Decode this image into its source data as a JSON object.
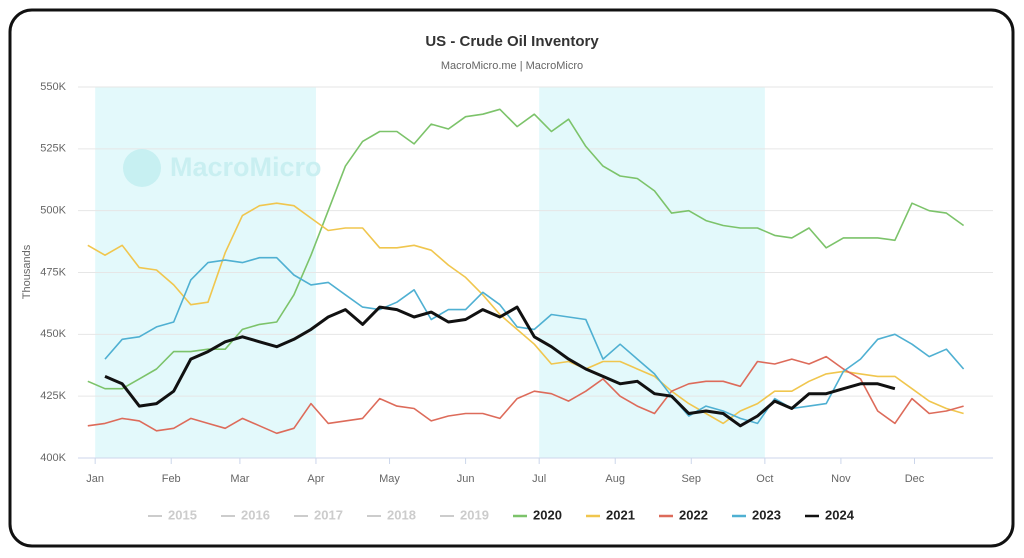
{
  "chart_data": {
    "type": "line",
    "title": "US - Crude Oil Inventory",
    "subtitle": "MacroMicro.me | MacroMicro",
    "watermark": "MacroMicro",
    "y_label": "Thousands",
    "x": [
      -3,
      4,
      11,
      18,
      25,
      32,
      39,
      46,
      53,
      60,
      67,
      74,
      81,
      88,
      95,
      102,
      109,
      116,
      123,
      130,
      137,
      144,
      151,
      158,
      165,
      172,
      179,
      186,
      193,
      200,
      207,
      214,
      221,
      228,
      235,
      242,
      249,
      256,
      263,
      270,
      277,
      284,
      291,
      298,
      305,
      312,
      319,
      326,
      333,
      340,
      347,
      354
    ],
    "xlim": [
      -7,
      366
    ],
    "xticks": [
      {
        "value": 0,
        "label": "Jan"
      },
      {
        "value": 31,
        "label": "Feb"
      },
      {
        "value": 59,
        "label": "Mar"
      },
      {
        "value": 90,
        "label": "Apr"
      },
      {
        "value": 120,
        "label": "May"
      },
      {
        "value": 151,
        "label": "Jun"
      },
      {
        "value": 181,
        "label": "Jul"
      },
      {
        "value": 212,
        "label": "Aug"
      },
      {
        "value": 243,
        "label": "Sep"
      },
      {
        "value": 273,
        "label": "Oct"
      },
      {
        "value": 304,
        "label": "Nov"
      },
      {
        "value": 334,
        "label": "Dec"
      }
    ],
    "shaded_ranges": [
      [
        0,
        90
      ],
      [
        181,
        273
      ]
    ],
    "shade_color": "#e3f9fb",
    "ylim": [
      400,
      550
    ],
    "yticks": [
      {
        "value": 400,
        "label": "400K"
      },
      {
        "value": 425,
        "label": "425K"
      },
      {
        "value": 450,
        "label": "450K"
      },
      {
        "value": 475,
        "label": "475K"
      },
      {
        "value": 500,
        "label": "500K"
      },
      {
        "value": 525,
        "label": "525K"
      },
      {
        "value": 550,
        "label": "550K"
      }
    ],
    "grid": true,
    "hidden_series": [
      "2015",
      "2016",
      "2017",
      "2018",
      "2019"
    ],
    "series": [
      {
        "name": "2020",
        "color": "#7cc36a",
        "values": [
          431,
          428,
          428,
          432,
          436,
          443,
          443,
          444,
          444,
          452,
          454,
          455,
          466,
          482,
          500,
          518,
          528,
          532,
          532,
          527,
          535,
          533,
          538,
          539,
          541,
          534,
          539,
          532,
          537,
          526,
          518,
          514,
          513,
          508,
          499,
          500,
          496,
          494,
          493,
          493,
          490,
          489,
          493,
          485,
          489,
          489,
          489,
          488,
          503,
          500,
          499,
          494
        ]
      },
      {
        "name": "2021",
        "color": "#f0c64e",
        "values": [
          486,
          482,
          486,
          477,
          476,
          470,
          462,
          463,
          483,
          498,
          502,
          503,
          502,
          497,
          492,
          493,
          493,
          485,
          485,
          486,
          484,
          478,
          473,
          466,
          458,
          452,
          446,
          438,
          439,
          436,
          439,
          439,
          436,
          433,
          427,
          422,
          418,
          414,
          419,
          422,
          427,
          427,
          431,
          434,
          435,
          434,
          433,
          433,
          428,
          423,
          420,
          418
        ]
      },
      {
        "name": "2022",
        "color": "#dd6b5a",
        "values": [
          413,
          414,
          416,
          415,
          411,
          412,
          416,
          414,
          412,
          416,
          413,
          410,
          412,
          422,
          414,
          415,
          416,
          424,
          421,
          420,
          415,
          417,
          418,
          418,
          416,
          424,
          427,
          426,
          423,
          427,
          432,
          425,
          421,
          418,
          427,
          430,
          431,
          431,
          429,
          439,
          438,
          440,
          438,
          441,
          436,
          432,
          419,
          414,
          424,
          418,
          419,
          421
        ]
      },
      {
        "name": "2023",
        "color": "#4fb0d2",
        "values": [
          null,
          440,
          448,
          449,
          453,
          455,
          472,
          479,
          480,
          479,
          481,
          481,
          474,
          470,
          471,
          466,
          461,
          460,
          463,
          468,
          456,
          460,
          460,
          467,
          462,
          453,
          452,
          458,
          457,
          456,
          440,
          446,
          440,
          434,
          425,
          417,
          421,
          419,
          416,
          414,
          424,
          420,
          421,
          422,
          435,
          440,
          448,
          450,
          446,
          441,
          444,
          436
        ]
      },
      {
        "name": "2024",
        "color": "#111111",
        "width": 3,
        "values": [
          null,
          433,
          430,
          421,
          422,
          427,
          440,
          443,
          447,
          449,
          447,
          445,
          448,
          452,
          457,
          460,
          454,
          461,
          460,
          457,
          459,
          455,
          456,
          460,
          457,
          461,
          449,
          445,
          440,
          436,
          433,
          430,
          431,
          426,
          425,
          418,
          419,
          418,
          413,
          417,
          423,
          420,
          426,
          426,
          428,
          430,
          430,
          428,
          null,
          null,
          null,
          null
        ]
      }
    ]
  }
}
